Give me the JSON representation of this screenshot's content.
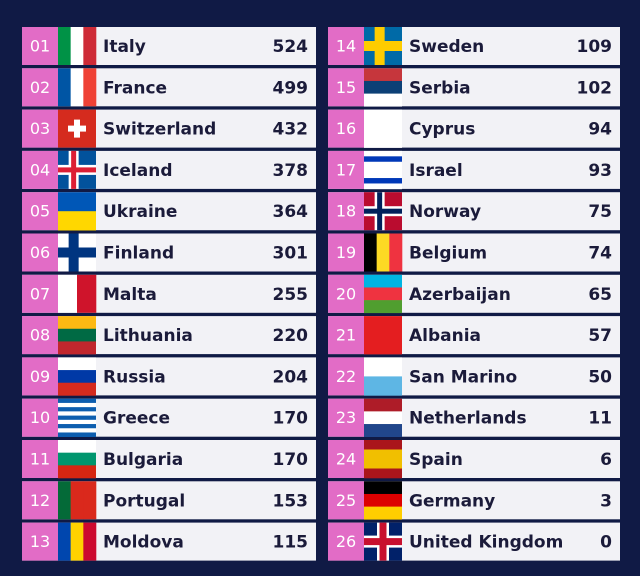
{
  "rows": [
    {
      "rank": "01",
      "country": "Italy",
      "points": 524
    },
    {
      "rank": "02",
      "country": "France",
      "points": 499
    },
    {
      "rank": "03",
      "country": "Switzerland",
      "points": 432
    },
    {
      "rank": "04",
      "country": "Iceland",
      "points": 378
    },
    {
      "rank": "05",
      "country": "Ukraine",
      "points": 364
    },
    {
      "rank": "06",
      "country": "Finland",
      "points": 301
    },
    {
      "rank": "07",
      "country": "Malta",
      "points": 255
    },
    {
      "rank": "08",
      "country": "Lithuania",
      "points": 220
    },
    {
      "rank": "09",
      "country": "Russia",
      "points": 204
    },
    {
      "rank": "10",
      "country": "Greece",
      "points": 170
    },
    {
      "rank": "11",
      "country": "Bulgaria",
      "points": 170
    },
    {
      "rank": "12",
      "country": "Portugal",
      "points": 153
    },
    {
      "rank": "13",
      "country": "Moldova",
      "points": 115
    },
    {
      "rank": "14",
      "country": "Sweden",
      "points": 109
    },
    {
      "rank": "15",
      "country": "Serbia",
      "points": 102
    },
    {
      "rank": "16",
      "country": "Cyprus",
      "points": 94
    },
    {
      "rank": "17",
      "country": "Israel",
      "points": 93
    },
    {
      "rank": "18",
      "country": "Norway",
      "points": 75
    },
    {
      "rank": "19",
      "country": "Belgium",
      "points": 74
    },
    {
      "rank": "20",
      "country": "Azerbaijan",
      "points": 65
    },
    {
      "rank": "21",
      "country": "Albania",
      "points": 57
    },
    {
      "rank": "22",
      "country": "San Marino",
      "points": 50
    },
    {
      "rank": "23",
      "country": "Netherlands",
      "points": 11
    },
    {
      "rank": "24",
      "country": "Spain",
      "points": 6
    },
    {
      "rank": "25",
      "country": "Germany",
      "points": 3
    },
    {
      "rank": "26",
      "country": "United Kingdom",
      "points": 0
    }
  ]
}
